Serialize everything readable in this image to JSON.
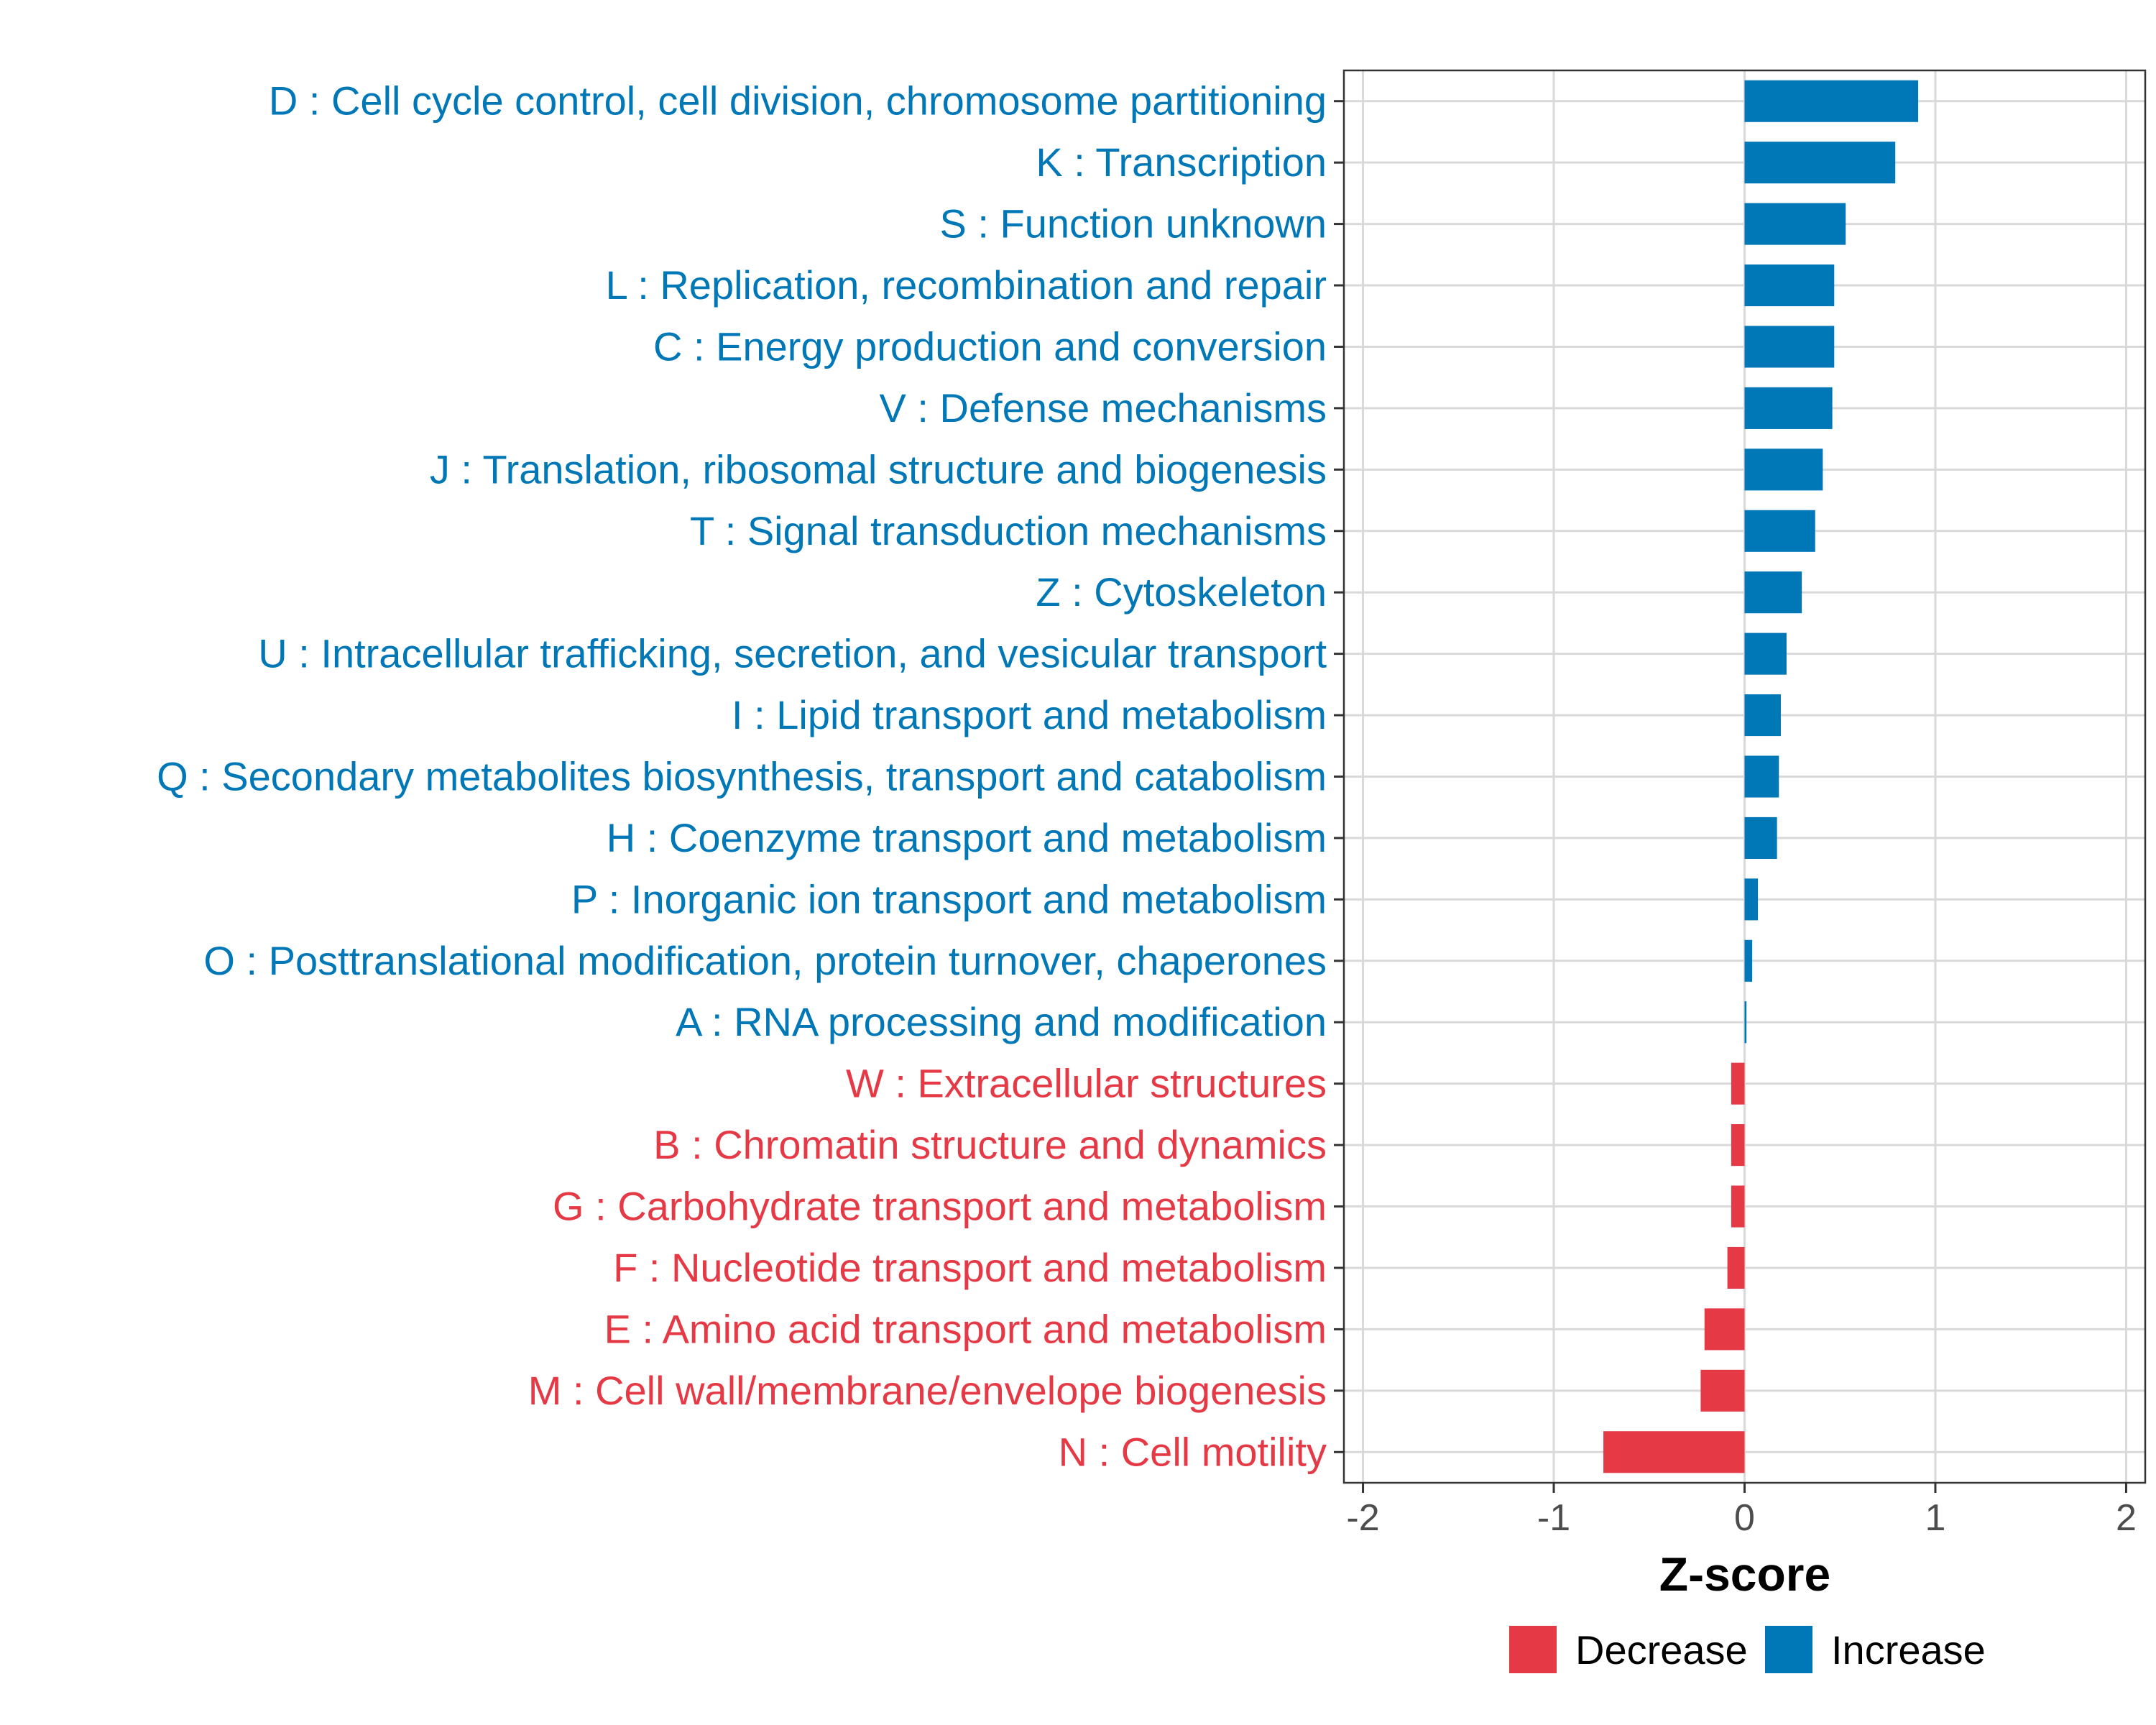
{
  "chart_data": {
    "type": "bar",
    "orientation": "horizontal",
    "title": "",
    "xlabel": "Z-score",
    "ylabel": "",
    "xlim": [
      -2.1,
      2.1
    ],
    "xticks": [
      -2,
      -1,
      0,
      1,
      2
    ],
    "xtick_labels": [
      "-2",
      "-1",
      "0",
      "1",
      "2"
    ],
    "grid": true,
    "legend_position": "bottom",
    "colors": {
      "Decrease": "#e63946",
      "Increase": "#0077b6"
    },
    "legend": [
      {
        "label": "Decrease",
        "color": "#e63946"
      },
      {
        "label": "Increase",
        "color": "#0077b6"
      }
    ],
    "categories": [
      "D : Cell cycle control, cell division, chromosome partitioning",
      "K : Transcription",
      "S : Function unknown",
      "L : Replication, recombination and repair",
      "C : Energy production and conversion",
      "V : Defense mechanisms",
      "J : Translation, ribosomal structure and biogenesis",
      "T : Signal transduction mechanisms",
      "Z : Cytoskeleton",
      "U : Intracellular trafficking, secretion, and vesicular transport",
      "I : Lipid transport and metabolism",
      "Q : Secondary metabolites biosynthesis, transport and catabolism",
      "H : Coenzyme transport and metabolism",
      "P : Inorganic ion transport and metabolism",
      "O : Posttranslational modification, protein turnover, chaperones",
      "A : RNA processing and modification",
      "W : Extracellular structures",
      "B : Chromatin structure and dynamics",
      "G : Carbohydrate transport and metabolism",
      "F : Nucleotide transport and metabolism",
      "E : Amino acid transport and metabolism",
      "M : Cell wall/membrane/envelope biogenesis",
      "N : Cell motility"
    ],
    "values": [
      0.91,
      0.79,
      0.53,
      0.47,
      0.47,
      0.46,
      0.41,
      0.37,
      0.3,
      0.22,
      0.19,
      0.18,
      0.17,
      0.07,
      0.04,
      0.01,
      -0.07,
      -0.07,
      -0.07,
      -0.09,
      -0.21,
      -0.23,
      -0.74
    ],
    "groups": [
      "Increase",
      "Increase",
      "Increase",
      "Increase",
      "Increase",
      "Increase",
      "Increase",
      "Increase",
      "Increase",
      "Increase",
      "Increase",
      "Increase",
      "Increase",
      "Increase",
      "Increase",
      "Increase",
      "Decrease",
      "Decrease",
      "Decrease",
      "Decrease",
      "Decrease",
      "Decrease",
      "Decrease"
    ]
  }
}
